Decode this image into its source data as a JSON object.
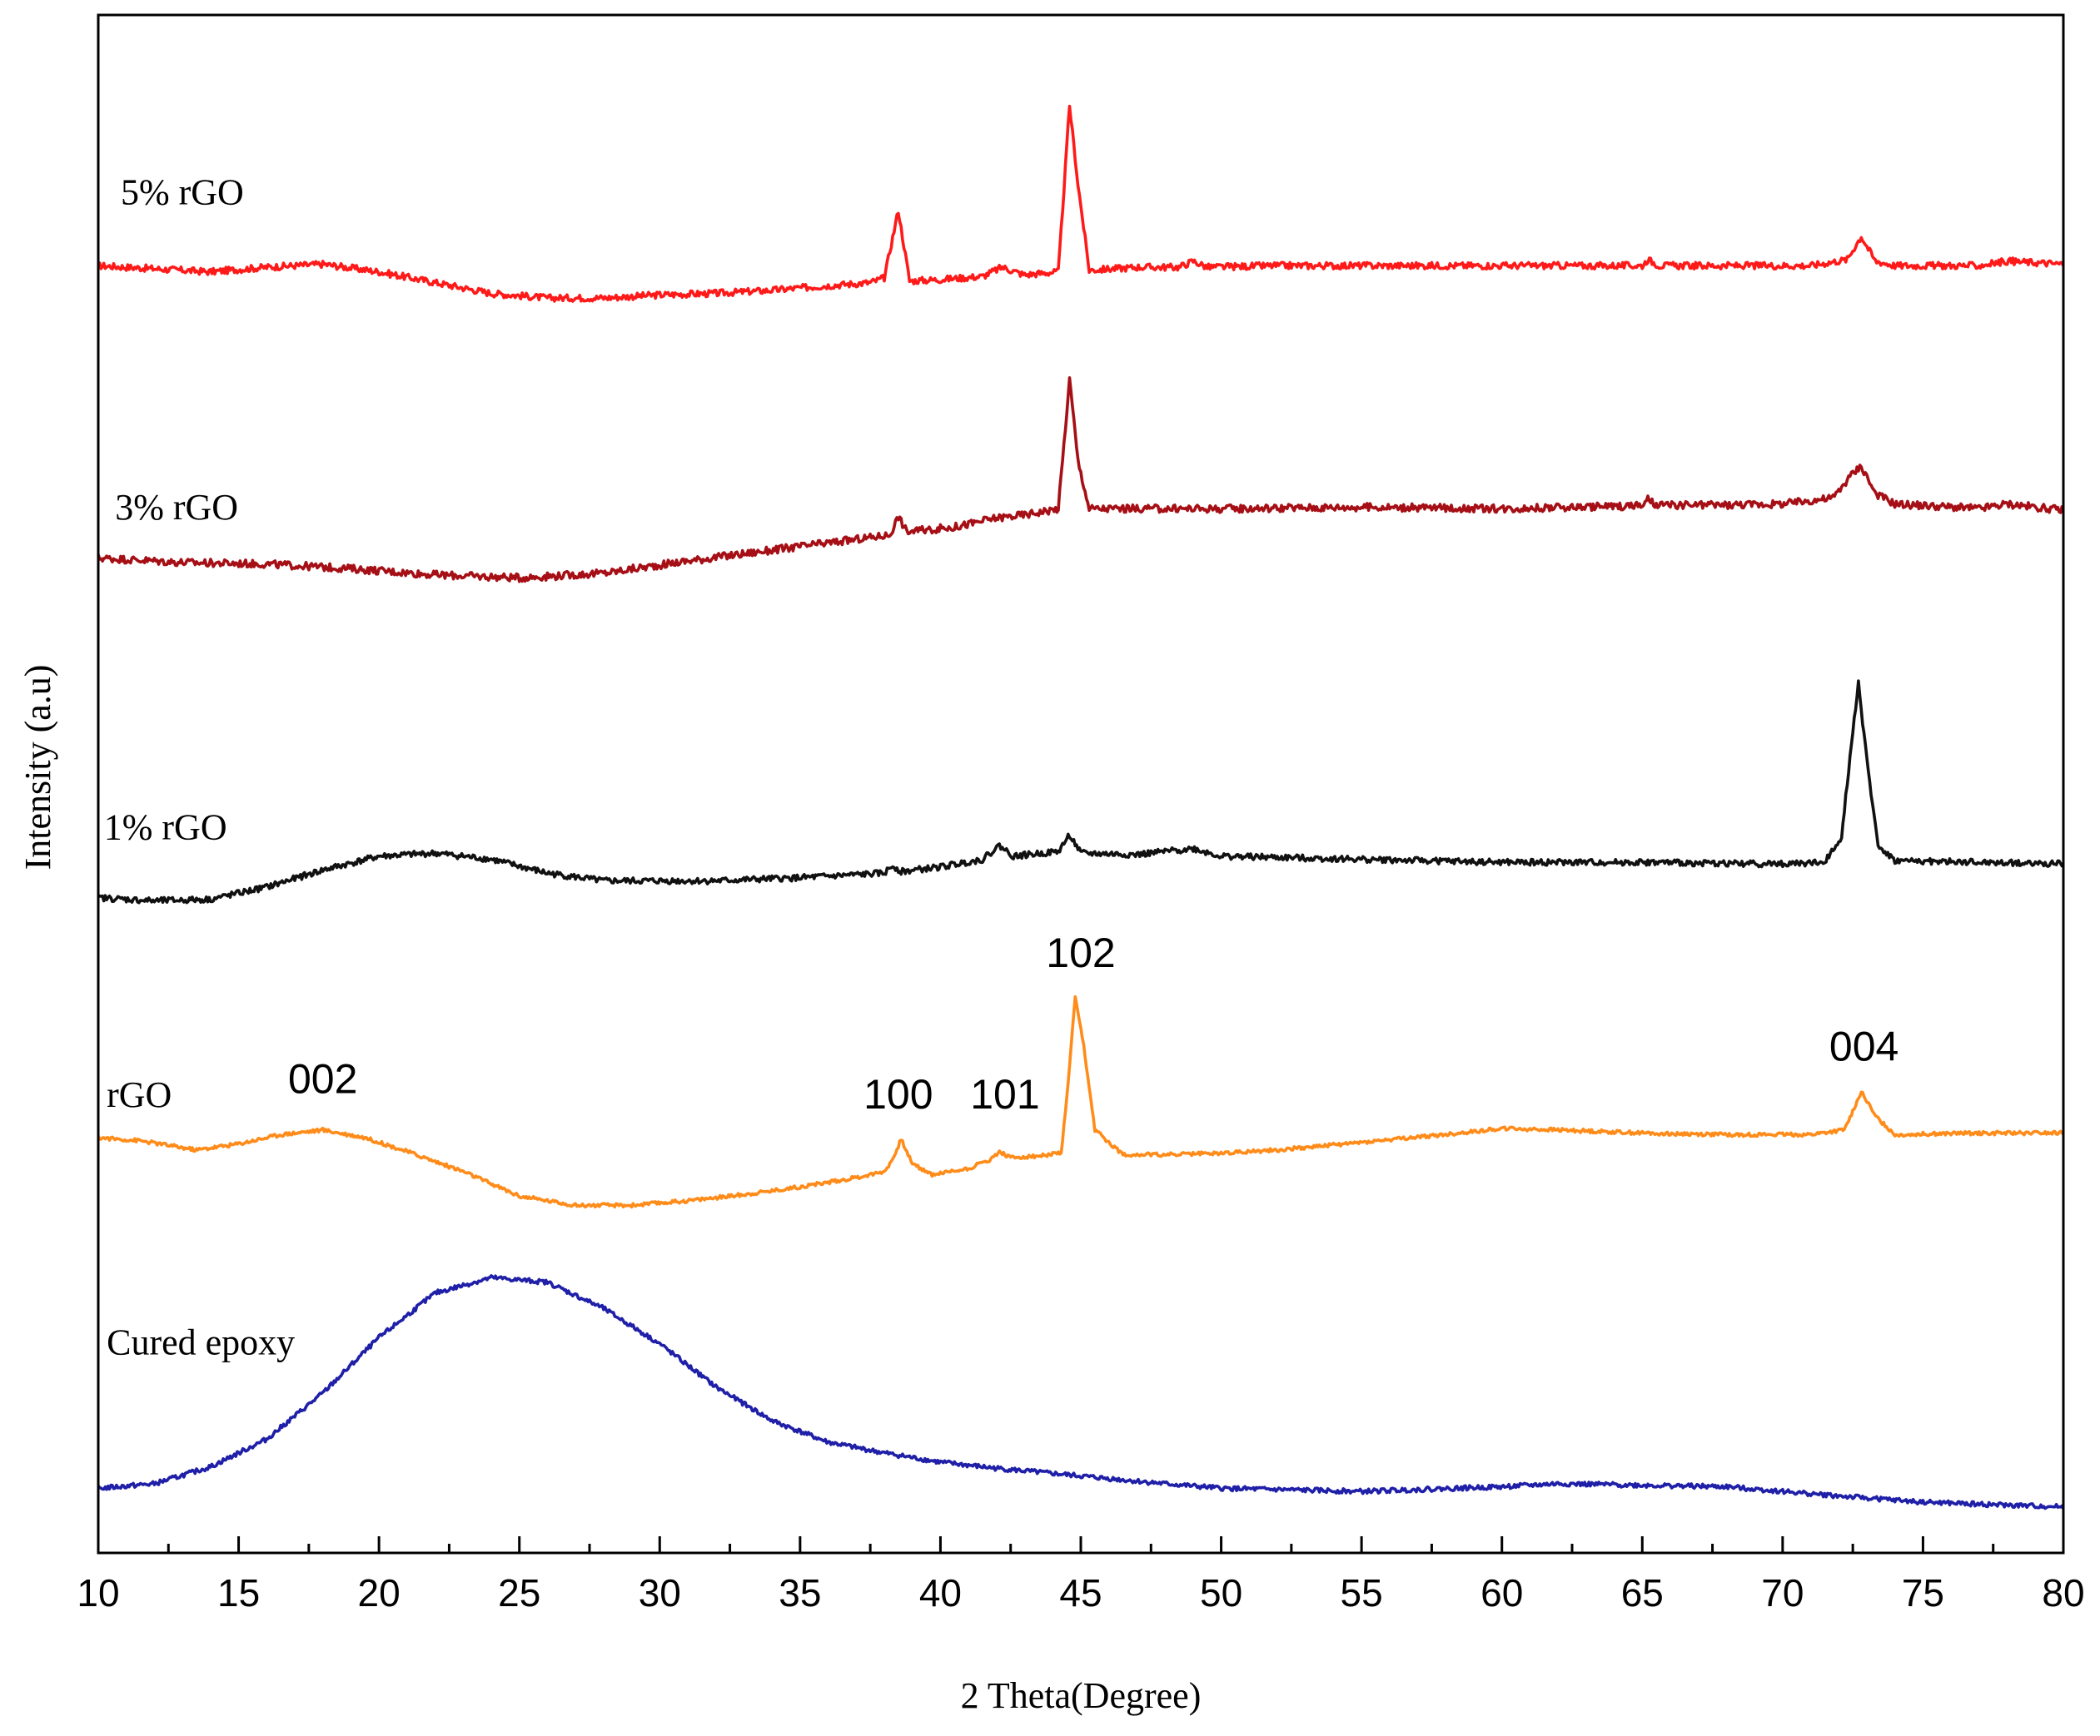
{
  "chart_data": {
    "type": "line",
    "title": "",
    "xlabel": "2 Theta(Degree)",
    "ylabel": "Intensity (a.u)",
    "xlim": [
      10,
      80
    ],
    "ylim": [
      0,
      100
    ],
    "x_ticks": [
      10,
      15,
      20,
      25,
      30,
      35,
      40,
      45,
      50,
      55,
      60,
      65,
      70,
      75,
      80
    ],
    "x_tick_labels": [
      "10",
      "15",
      "20",
      "25",
      "30",
      "35",
      "40",
      "45",
      "50",
      "55",
      "60",
      "65",
      "70",
      "75",
      "80"
    ],
    "y_ticks_shown": false,
    "series": [
      {
        "name": "5% rGO",
        "color": "#ff1a1a",
        "noise": 0.22,
        "points": [
          [
            10,
            83.7
          ],
          [
            12,
            83.5
          ],
          [
            14,
            83.3
          ],
          [
            16,
            83.6
          ],
          [
            18,
            83.8
          ],
          [
            20,
            83.3
          ],
          [
            22,
            82.6
          ],
          [
            24,
            81.9
          ],
          [
            26,
            81.6
          ],
          [
            28,
            81.6
          ],
          [
            30,
            81.8
          ],
          [
            32,
            81.9
          ],
          [
            34,
            82.1
          ],
          [
            36,
            82.4
          ],
          [
            37.5,
            82.6
          ],
          [
            38,
            82.9
          ],
          [
            38.5,
            87.3
          ],
          [
            38.9,
            82.7
          ],
          [
            40,
            82.8
          ],
          [
            41.5,
            83.0
          ],
          [
            42.2,
            83.6
          ],
          [
            43,
            83.1
          ],
          [
            44.2,
            83.3
          ],
          [
            44.6,
            94.1
          ],
          [
            44.9,
            89.0
          ],
          [
            45.3,
            83.4
          ],
          [
            47,
            83.6
          ],
          [
            48.5,
            83.6
          ],
          [
            49,
            84.0
          ],
          [
            49.5,
            83.6
          ],
          [
            52,
            83.7
          ],
          [
            55,
            83.7
          ],
          [
            58,
            83.7
          ],
          [
            62,
            83.7
          ],
          [
            65,
            83.7
          ],
          [
            65.2,
            84.1
          ],
          [
            65.6,
            83.7
          ],
          [
            71,
            83.7
          ],
          [
            72.3,
            84.1
          ],
          [
            72.8,
            85.6
          ],
          [
            73.3,
            84.0
          ],
          [
            74,
            83.7
          ],
          [
            77,
            83.7
          ],
          [
            78,
            84.0
          ],
          [
            80,
            83.8
          ]
        ]
      },
      {
        "name": "3% rGO",
        "color": "#a50f15",
        "noise": 0.25,
        "points": [
          [
            10,
            64.7
          ],
          [
            13,
            64.4
          ],
          [
            16,
            64.3
          ],
          [
            19,
            64.0
          ],
          [
            22,
            63.6
          ],
          [
            25,
            63.4
          ],
          [
            28,
            63.7
          ],
          [
            31,
            64.5
          ],
          [
            34,
            65.2
          ],
          [
            37,
            65.9
          ],
          [
            38.2,
            66.2
          ],
          [
            38.5,
            67.4
          ],
          [
            38.8,
            66.4
          ],
          [
            40.5,
            66.7
          ],
          [
            42,
            67.3
          ],
          [
            43,
            67.5
          ],
          [
            44.2,
            67.9
          ],
          [
            44.6,
            76.3
          ],
          [
            44.9,
            71.0
          ],
          [
            45.3,
            67.9
          ],
          [
            50,
            67.9
          ],
          [
            55,
            68.0
          ],
          [
            60,
            67.9
          ],
          [
            65,
            68.1
          ],
          [
            65.2,
            68.5
          ],
          [
            65.5,
            68.1
          ],
          [
            70,
            68.2
          ],
          [
            71.8,
            68.6
          ],
          [
            72.4,
            70.0
          ],
          [
            72.8,
            70.7
          ],
          [
            73.3,
            68.9
          ],
          [
            74,
            68.2
          ],
          [
            77,
            67.9
          ],
          [
            78,
            68.2
          ],
          [
            80,
            67.8
          ]
        ]
      },
      {
        "name": "1% rGO",
        "color": "#111111",
        "noise": 0.2,
        "points": [
          [
            10,
            42.6
          ],
          [
            12,
            42.4
          ],
          [
            14,
            42.5
          ],
          [
            16,
            43.3
          ],
          [
            18,
            44.4
          ],
          [
            20,
            45.3
          ],
          [
            22,
            45.5
          ],
          [
            24,
            45.1
          ],
          [
            26,
            44.2
          ],
          [
            28,
            43.7
          ],
          [
            30,
            43.7
          ],
          [
            32,
            43.7
          ],
          [
            35,
            43.9
          ],
          [
            38,
            44.2
          ],
          [
            38.3,
            44.7
          ],
          [
            38.6,
            44.3
          ],
          [
            40,
            44.6
          ],
          [
            41.5,
            45.1
          ],
          [
            42.1,
            46.0
          ],
          [
            42.6,
            45.3
          ],
          [
            44.2,
            45.6
          ],
          [
            44.6,
            46.7
          ],
          [
            45,
            45.5
          ],
          [
            47,
            45.4
          ],
          [
            49,
            45.8
          ],
          [
            50,
            45.3
          ],
          [
            55,
            45.1
          ],
          [
            60,
            44.9
          ],
          [
            65,
            44.9
          ],
          [
            70,
            44.8
          ],
          [
            71.5,
            44.9
          ],
          [
            72.1,
            46.6
          ],
          [
            72.4,
            51.8
          ],
          [
            72.7,
            56.6
          ],
          [
            73.0,
            51.5
          ],
          [
            73.4,
            46.0
          ],
          [
            74,
            45.0
          ],
          [
            77,
            44.9
          ],
          [
            80,
            44.8
          ]
        ]
      },
      {
        "name": "rGO",
        "color": "#ff8c1a",
        "noise": 0.12,
        "points": [
          [
            10,
            27.0
          ],
          [
            11.5,
            26.8
          ],
          [
            13.5,
            26.2
          ],
          [
            15,
            26.6
          ],
          [
            16.5,
            27.2
          ],
          [
            18,
            27.5
          ],
          [
            19.5,
            27.0
          ],
          [
            21,
            26.1
          ],
          [
            23,
            24.8
          ],
          [
            25,
            23.2
          ],
          [
            27,
            22.6
          ],
          [
            29,
            22.6
          ],
          [
            31,
            22.9
          ],
          [
            33,
            23.3
          ],
          [
            35,
            23.8
          ],
          [
            37,
            24.4
          ],
          [
            38,
            24.8
          ],
          [
            38.3,
            25.6
          ],
          [
            38.6,
            26.9
          ],
          [
            39,
            25.3
          ],
          [
            39.7,
            24.6
          ],
          [
            41,
            25.0
          ],
          [
            41.8,
            25.6
          ],
          [
            42.1,
            26.1
          ],
          [
            42.5,
            25.7
          ],
          [
            43.5,
            25.8
          ],
          [
            44.3,
            26.0
          ],
          [
            44.5,
            29.5
          ],
          [
            44.8,
            36.1
          ],
          [
            45.1,
            33.0
          ],
          [
            45.5,
            27.5
          ],
          [
            46.5,
            25.9
          ],
          [
            48,
            25.9
          ],
          [
            50,
            26.0
          ],
          [
            52,
            26.2
          ],
          [
            55,
            26.7
          ],
          [
            58,
            27.2
          ],
          [
            60,
            27.6
          ],
          [
            62,
            27.5
          ],
          [
            65,
            27.3
          ],
          [
            68,
            27.2
          ],
          [
            71,
            27.2
          ],
          [
            72.2,
            27.5
          ],
          [
            72.8,
            30.0
          ],
          [
            73.3,
            28.4
          ],
          [
            74,
            27.2
          ],
          [
            77,
            27.3
          ],
          [
            80,
            27.3
          ]
        ]
      },
      {
        "name": "Cured  epoxy",
        "color": "#1f1fa8",
        "noise": 0.15,
        "points": [
          [
            10,
            4.2
          ],
          [
            12,
            4.5
          ],
          [
            14,
            5.6
          ],
          [
            16,
            7.4
          ],
          [
            18,
            10.4
          ],
          [
            20,
            14.0
          ],
          [
            22,
            16.9
          ],
          [
            24,
            17.9
          ],
          [
            26,
            17.6
          ],
          [
            28,
            15.9
          ],
          [
            30,
            13.6
          ],
          [
            32,
            10.8
          ],
          [
            34,
            8.6
          ],
          [
            36,
            7.2
          ],
          [
            38,
            6.5
          ],
          [
            40,
            5.9
          ],
          [
            42,
            5.5
          ],
          [
            45,
            5.0
          ],
          [
            48,
            4.5
          ],
          [
            50,
            4.2
          ],
          [
            55,
            4.0
          ],
          [
            60,
            4.3
          ],
          [
            62,
            4.5
          ],
          [
            65,
            4.4
          ],
          [
            68,
            4.3
          ],
          [
            70,
            4.0
          ],
          [
            72,
            3.7
          ],
          [
            75,
            3.3
          ],
          [
            78,
            3.1
          ],
          [
            80,
            3.0
          ]
        ]
      }
    ],
    "series_labels": [
      {
        "text": "5% rGO",
        "x": 10.8,
        "y": 87.7
      },
      {
        "text": "3% rGO",
        "x": 10.6,
        "y": 67.2
      },
      {
        "text": "1% rGO",
        "x": 10.2,
        "y": 46.4
      },
      {
        "text": "rGO",
        "x": 10.3,
        "y": 29.0
      },
      {
        "text": "Cured  epoxy",
        "x": 10.3,
        "y": 12.9
      }
    ],
    "annotations": [
      {
        "text": "002",
        "x": 18.0,
        "y": 29.9
      },
      {
        "text": "100",
        "x": 38.5,
        "y": 28.9
      },
      {
        "text": "101",
        "x": 42.3,
        "y": 28.9
      },
      {
        "text": "102",
        "x": 45.0,
        "y": 38.1
      },
      {
        "text": "004",
        "x": 72.9,
        "y": 32.0
      }
    ]
  }
}
